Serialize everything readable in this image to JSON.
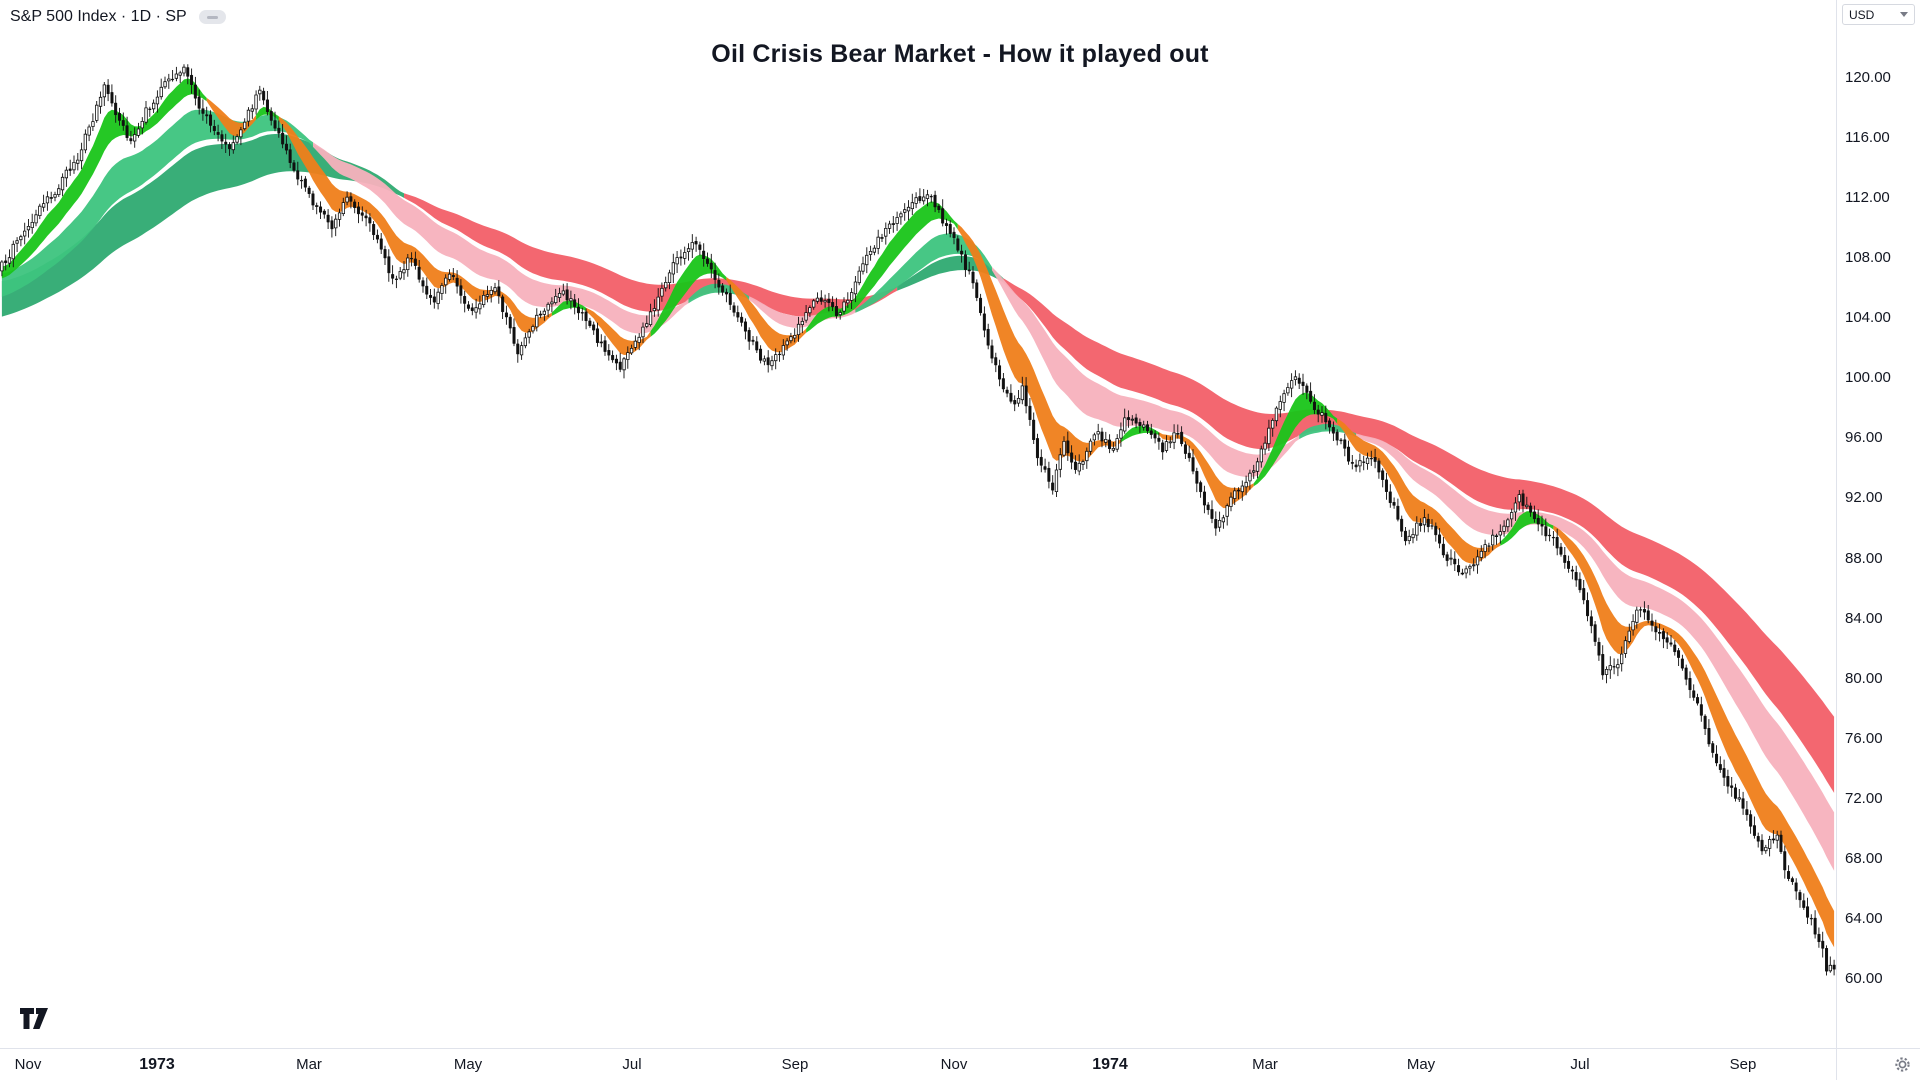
{
  "header": {
    "symbol_title": "S&P 500 Index · 1D · SP"
  },
  "price_axis": {
    "currency_label": "USD"
  },
  "chart_data": {
    "type": "candlestick",
    "title": "Oil Crisis Bear Market - How it played out",
    "symbol": "S&P 500 Index",
    "interval": "1D",
    "source": "SP",
    "currency": "USD",
    "legend_position": "none",
    "grid": false,
    "y_axis": {
      "min": 55.4,
      "max": 125.2,
      "ticks": [
        120,
        116,
        112,
        108,
        104,
        100,
        96,
        92,
        88,
        84,
        80,
        76,
        72,
        68,
        64,
        60
      ],
      "decimals": 2
    },
    "x_axis": {
      "ticks": [
        {
          "label": "Nov",
          "day": 7,
          "bold": false
        },
        {
          "label": "1973",
          "day": 41,
          "bold": true
        },
        {
          "label": "Mar",
          "day": 81,
          "bold": false
        },
        {
          "label": "May",
          "day": 123,
          "bold": false
        },
        {
          "label": "Jul",
          "day": 166,
          "bold": false
        },
        {
          "label": "Sep",
          "day": 209,
          "bold": false
        },
        {
          "label": "Nov",
          "day": 251,
          "bold": false
        },
        {
          "label": "1974",
          "day": 292,
          "bold": true
        },
        {
          "label": "Mar",
          "day": 333,
          "bold": false
        },
        {
          "label": "May",
          "day": 374,
          "bold": false
        },
        {
          "label": "Jul",
          "day": 416,
          "bold": false
        },
        {
          "label": "Sep",
          "day": 459,
          "bold": false
        }
      ]
    },
    "n_candles": 484,
    "close_anchors": [
      [
        0,
        107.5
      ],
      [
        5,
        109.5
      ],
      [
        10,
        111.2
      ],
      [
        15,
        112.8
      ],
      [
        20,
        114.8
      ],
      [
        24,
        117.2
      ],
      [
        27,
        119.6
      ],
      [
        30,
        117.8
      ],
      [
        34,
        115.8
      ],
      [
        38,
        117.8
      ],
      [
        43,
        119.6
      ],
      [
        48,
        120.6
      ],
      [
        52,
        118.2
      ],
      [
        56,
        116.4
      ],
      [
        60,
        115.4
      ],
      [
        64,
        117.2
      ],
      [
        68,
        119.2
      ],
      [
        72,
        116.8
      ],
      [
        77,
        113.8
      ],
      [
        81,
        112.2
      ],
      [
        84,
        111.0
      ],
      [
        87,
        110.2
      ],
      [
        91,
        112.2
      ],
      [
        94,
        111.2
      ],
      [
        97,
        110.5
      ],
      [
        100,
        108.4
      ],
      [
        103,
        106.6
      ],
      [
        106,
        107.4
      ],
      [
        108,
        108.1
      ],
      [
        111,
        106.2
      ],
      [
        114,
        104.9
      ],
      [
        118,
        107.2
      ],
      [
        121,
        105.6
      ],
      [
        124,
        104.4
      ],
      [
        127,
        105.4
      ],
      [
        130,
        106.3
      ],
      [
        133,
        103.9
      ],
      [
        136,
        101.7
      ],
      [
        141,
        104.2
      ],
      [
        144,
        105.0
      ],
      [
        147,
        105.8
      ],
      [
        152,
        104.6
      ],
      [
        155,
        103.4
      ],
      [
        158,
        102.2
      ],
      [
        161,
        101.2
      ],
      [
        163,
        100.8
      ],
      [
        166,
        102.0
      ],
      [
        169,
        103.2
      ],
      [
        173,
        105.4
      ],
      [
        177,
        107.7
      ],
      [
        180,
        108.4
      ],
      [
        183,
        109.1
      ],
      [
        186,
        107.8
      ],
      [
        189,
        106.3
      ],
      [
        193,
        104.6
      ],
      [
        196,
        103.1
      ],
      [
        199,
        101.8
      ],
      [
        202,
        100.8
      ],
      [
        206,
        102.0
      ],
      [
        209,
        103.1
      ],
      [
        212,
        104.3
      ],
      [
        215,
        105.4
      ],
      [
        218,
        104.8
      ],
      [
        220,
        104.2
      ],
      [
        224,
        105.9
      ],
      [
        227,
        107.5
      ],
      [
        230,
        108.8
      ],
      [
        233,
        109.9
      ],
      [
        237,
        110.9
      ],
      [
        240,
        111.6
      ],
      [
        244,
        112.4
      ],
      [
        247,
        111.2
      ],
      [
        249,
        109.9
      ],
      [
        252,
        108.7
      ],
      [
        256,
        106.3
      ],
      [
        259,
        103.1
      ],
      [
        261,
        101.5
      ],
      [
        263,
        99.8
      ],
      [
        267,
        98.3
      ],
      [
        269,
        99.4
      ],
      [
        271,
        97.2
      ],
      [
        273,
        94.9
      ],
      [
        277,
        92.6
      ],
      [
        280,
        95.7
      ],
      [
        283,
        93.7
      ],
      [
        286,
        95.2
      ],
      [
        288,
        96.5
      ],
      [
        291,
        95.8
      ],
      [
        293,
        95.3
      ],
      [
        296,
        97.3
      ],
      [
        299,
        97.0
      ],
      [
        301,
        96.9
      ],
      [
        304,
        96.0
      ],
      [
        306,
        95.3
      ],
      [
        308,
        95.9
      ],
      [
        310,
        96.5
      ],
      [
        313,
        94.6
      ],
      [
        315,
        92.8
      ],
      [
        318,
        91.2
      ],
      [
        320,
        90.0
      ],
      [
        323,
        91.3
      ],
      [
        325,
        92.4
      ],
      [
        328,
        93.2
      ],
      [
        330,
        94.1
      ],
      [
        333,
        95.8
      ],
      [
        335,
        97.3
      ],
      [
        338,
        98.8
      ],
      [
        341,
        100.2
      ],
      [
        344,
        99.0
      ],
      [
        346,
        98.1
      ],
      [
        349,
        97.2
      ],
      [
        351,
        96.5
      ],
      [
        354,
        95.2
      ],
      [
        356,
        94.1
      ],
      [
        359,
        94.6
      ],
      [
        361,
        94.9
      ],
      [
        363,
        93.7
      ],
      [
        365,
        92.4
      ],
      [
        368,
        90.7
      ],
      [
        370,
        89.2
      ],
      [
        373,
        90.1
      ],
      [
        375,
        90.8
      ],
      [
        378,
        89.5
      ],
      [
        380,
        88.4
      ],
      [
        383,
        87.5
      ],
      [
        385,
        86.8
      ],
      [
        388,
        87.7
      ],
      [
        390,
        88.4
      ],
      [
        393,
        89.3
      ],
      [
        395,
        90.0
      ],
      [
        398,
        91.1
      ],
      [
        400,
        92.0
      ],
      [
        403,
        91.0
      ],
      [
        406,
        90.0
      ],
      [
        409,
        89.2
      ],
      [
        411,
        88.4
      ],
      [
        413,
        87.6
      ],
      [
        415,
        86.8
      ],
      [
        417,
        85.3
      ],
      [
        419,
        83.6
      ],
      [
        421,
        81.7
      ],
      [
        422,
        80.2
      ],
      [
        424,
        80.6
      ],
      [
        426,
        80.9
      ],
      [
        429,
        83.0
      ],
      [
        431,
        84.8
      ],
      [
        433,
        84.2
      ],
      [
        435,
        83.6
      ],
      [
        438,
        82.9
      ],
      [
        440,
        82.3
      ],
      [
        443,
        80.9
      ],
      [
        445,
        79.5
      ],
      [
        448,
        77.4
      ],
      [
        450,
        75.4
      ],
      [
        453,
        74.2
      ],
      [
        455,
        73.0
      ],
      [
        458,
        71.9
      ],
      [
        460,
        70.9
      ],
      [
        462,
        69.7
      ],
      [
        464,
        68.5
      ],
      [
        466,
        69.2
      ],
      [
        468,
        69.7
      ],
      [
        470,
        67.2
      ],
      [
        473,
        65.9
      ],
      [
        475,
        64.8
      ],
      [
        477,
        63.9
      ],
      [
        478,
        63.2
      ],
      [
        480,
        61.9
      ],
      [
        481,
        60.7
      ],
      [
        483,
        60.9
      ]
    ],
    "candle_style": {
      "up_fill": "#ffffff",
      "down_fill": "#101010",
      "border": "#101010",
      "wick": "#101010"
    },
    "ribbons": [
      {
        "name": "slow",
        "fast_period": 60,
        "slow_period": 100,
        "seed_offset": 3.5,
        "bull_color": "#2eaa71",
        "bear_color": "#f25f68",
        "pad": 2.0
      },
      {
        "name": "mid",
        "fast_period": 30,
        "slow_period": 50,
        "seed_offset": 2.2,
        "bull_color": "#3dc47e",
        "bear_color": "#f7b1bd",
        "pad": 1.6
      },
      {
        "name": "fast",
        "fast_period": 8,
        "slow_period": 17,
        "seed_offset": 1.0,
        "bull_color": "#19c519",
        "bear_color": "#ef7e1a",
        "pad": 1.4
      }
    ]
  }
}
